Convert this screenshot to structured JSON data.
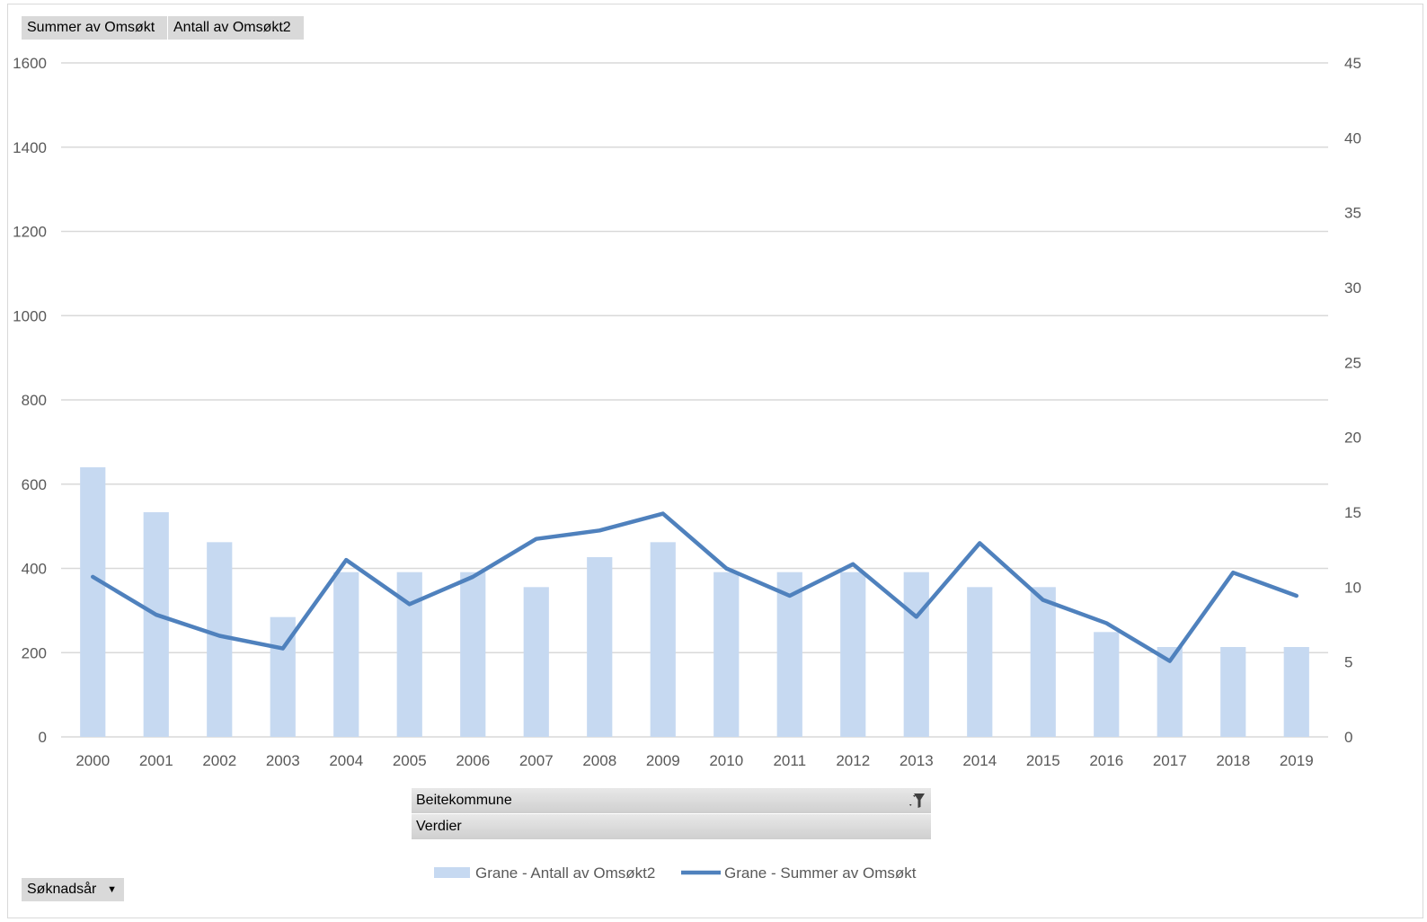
{
  "pivot_buttons": {
    "values_1": "Summer av Omsøkt",
    "values_2": "Antall av Omsøkt2",
    "axis_field": "Søknadsår"
  },
  "filter_panel": {
    "field": "Beitekommune",
    "values_label": "Verdier",
    "filter_icon": "filter-icon"
  },
  "colors": {
    "bar": "#c6d9f1",
    "line": "#4f81bd",
    "grid": "#d9d9d9",
    "tick_text": "#595959"
  },
  "chart_data": {
    "type": "bar",
    "categories": [
      "2000",
      "2001",
      "2002",
      "2003",
      "2004",
      "2005",
      "2006",
      "2007",
      "2008",
      "2009",
      "2010",
      "2011",
      "2012",
      "2013",
      "2014",
      "2015",
      "2016",
      "2017",
      "2018",
      "2019"
    ],
    "series": [
      {
        "name": "Grane - Antall av Omsøkt2",
        "type": "bar",
        "axis": "secondary",
        "values": [
          18,
          15,
          13,
          8,
          11,
          11,
          11,
          10,
          12,
          13,
          11,
          11,
          11,
          11,
          10,
          10,
          7,
          6,
          6,
          6
        ]
      },
      {
        "name": "Grane - Summer av Omsøkt",
        "type": "line",
        "axis": "primary",
        "values": [
          380,
          290,
          240,
          210,
          420,
          315,
          380,
          470,
          490,
          530,
          400,
          335,
          410,
          285,
          460,
          325,
          270,
          180,
          390,
          335
        ]
      }
    ],
    "y_primary": {
      "ylim": [
        0,
        1600
      ],
      "ticks": [
        0,
        200,
        400,
        600,
        800,
        1000,
        1200,
        1400,
        1600
      ]
    },
    "y_secondary": {
      "ylim": [
        0,
        45
      ],
      "ticks": [
        0,
        5,
        10,
        15,
        20,
        25,
        30,
        35,
        40,
        45
      ]
    },
    "grid": true,
    "legend_position": "bottom"
  }
}
